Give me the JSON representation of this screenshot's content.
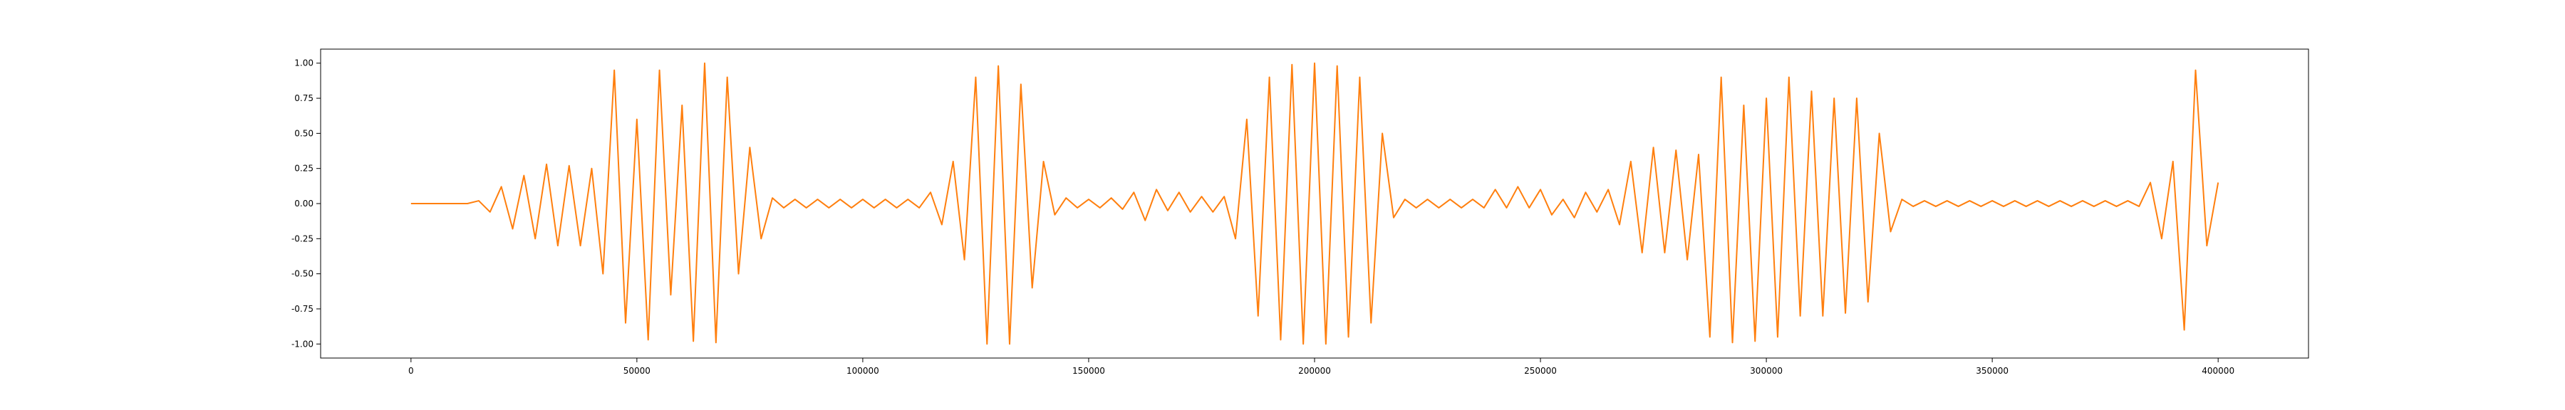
{
  "chart_data": {
    "type": "line",
    "x": [
      0,
      2500,
      5000,
      7500,
      10000,
      12500,
      15000,
      17500,
      20000,
      22500,
      25000,
      27500,
      30000,
      32500,
      35000,
      37500,
      40000,
      42500,
      45000,
      47500,
      50000,
      52500,
      55000,
      57500,
      60000,
      62500,
      65000,
      67500,
      70000,
      72500,
      75000,
      77500,
      80000,
      82500,
      85000,
      87500,
      90000,
      92500,
      95000,
      97500,
      100000,
      102500,
      105000,
      107500,
      110000,
      112500,
      115000,
      117500,
      120000,
      122500,
      125000,
      127500,
      130000,
      132500,
      135000,
      137500,
      140000,
      142500,
      145000,
      147500,
      150000,
      152500,
      155000,
      157500,
      160000,
      162500,
      165000,
      167500,
      170000,
      172500,
      175000,
      177500,
      180000,
      182500,
      185000,
      187500,
      190000,
      192500,
      195000,
      197500,
      200000,
      202500,
      205000,
      207500,
      210000,
      212500,
      215000,
      217500,
      220000,
      222500,
      225000,
      227500,
      230000,
      232500,
      235000,
      237500,
      240000,
      242500,
      245000,
      247500,
      250000,
      252500,
      255000,
      257500,
      260000,
      262500,
      265000,
      267500,
      270000,
      272500,
      275000,
      277500,
      280000,
      282500,
      285000,
      287500,
      290000,
      292500,
      295000,
      297500,
      300000,
      302500,
      305000,
      307500,
      310000,
      312500,
      315000,
      317500,
      320000,
      322500,
      325000,
      327500,
      330000,
      332500,
      335000,
      337500,
      340000,
      342500,
      345000,
      347500,
      350000,
      352500,
      355000,
      357500,
      360000,
      362500,
      365000,
      367500,
      370000,
      372500,
      375000,
      377500,
      380000,
      382500,
      385000,
      387500,
      390000,
      392500,
      395000,
      397500,
      400000
    ],
    "series": [
      {
        "color": "#ff7f0e",
        "values": [
          0,
          0,
          0,
          0,
          0,
          0,
          0.02,
          -0.06,
          0.12,
          -0.18,
          0.2,
          -0.25,
          0.28,
          -0.3,
          0.27,
          -0.3,
          0.25,
          -0.5,
          0.95,
          -0.85,
          0.6,
          -0.97,
          0.95,
          -0.65,
          0.7,
          -0.98,
          1.0,
          -0.99,
          0.9,
          -0.5,
          0.4,
          -0.25,
          0.04,
          -0.03,
          0.03,
          -0.03,
          0.03,
          -0.03,
          0.03,
          -0.03,
          0.03,
          -0.03,
          0.03,
          -0.03,
          0.03,
          -0.03,
          0.08,
          -0.15,
          0.3,
          -0.4,
          0.9,
          -1.0,
          0.98,
          -1.0,
          0.85,
          -0.6,
          0.3,
          -0.08,
          0.04,
          -0.03,
          0.03,
          -0.03,
          0.04,
          -0.04,
          0.08,
          -0.12,
          0.1,
          -0.05,
          0.08,
          -0.06,
          0.05,
          -0.06,
          0.05,
          -0.25,
          0.6,
          -0.8,
          0.9,
          -0.97,
          0.99,
          -1.0,
          1.0,
          -1.0,
          0.98,
          -0.95,
          0.9,
          -0.85,
          0.5,
          -0.1,
          0.03,
          -0.03,
          0.03,
          -0.03,
          0.03,
          -0.03,
          0.03,
          -0.03,
          0.1,
          -0.03,
          0.12,
          -0.03,
          0.1,
          -0.08,
          0.03,
          -0.1,
          0.08,
          -0.06,
          0.1,
          -0.15,
          0.3,
          -0.35,
          0.4,
          -0.35,
          0.38,
          -0.4,
          0.35,
          -0.95,
          0.9,
          -0.99,
          0.7,
          -0.98,
          0.75,
          -0.95,
          0.9,
          -0.8,
          0.8,
          -0.8,
          0.75,
          -0.78,
          0.75,
          -0.7,
          0.5,
          -0.2,
          0.03,
          -0.02,
          0.02,
          -0.02,
          0.02,
          -0.02,
          0.02,
          -0.02,
          0.02,
          -0.02,
          0.02,
          -0.02,
          0.02,
          -0.02,
          0.02,
          -0.02,
          0.02,
          -0.02,
          0.02,
          -0.02,
          0.02,
          -0.02,
          0.15,
          -0.25,
          0.3,
          -0.9,
          0.95,
          -0.3,
          0.15
        ]
      }
    ],
    "xlim": [
      -20000,
      420000
    ],
    "ylim": [
      -1.1,
      1.1
    ],
    "xticks": [
      0,
      50000,
      100000,
      150000,
      200000,
      250000,
      300000,
      350000,
      400000
    ],
    "yticks": [
      {
        "value": -1,
        "label": "-1.00"
      },
      {
        "value": -0.75,
        "label": "-0.75"
      },
      {
        "value": -0.5,
        "label": "-0.50"
      },
      {
        "value": -0.25,
        "label": "-0.25"
      },
      {
        "value": 0,
        "label": "0.00"
      },
      {
        "value": 0.25,
        "label": "0.25"
      },
      {
        "value": 0.5,
        "label": "0.50"
      },
      {
        "value": 0.75,
        "label": "0.75"
      },
      {
        "value": 1,
        "label": "1.00"
      }
    ],
    "grid": false
  }
}
